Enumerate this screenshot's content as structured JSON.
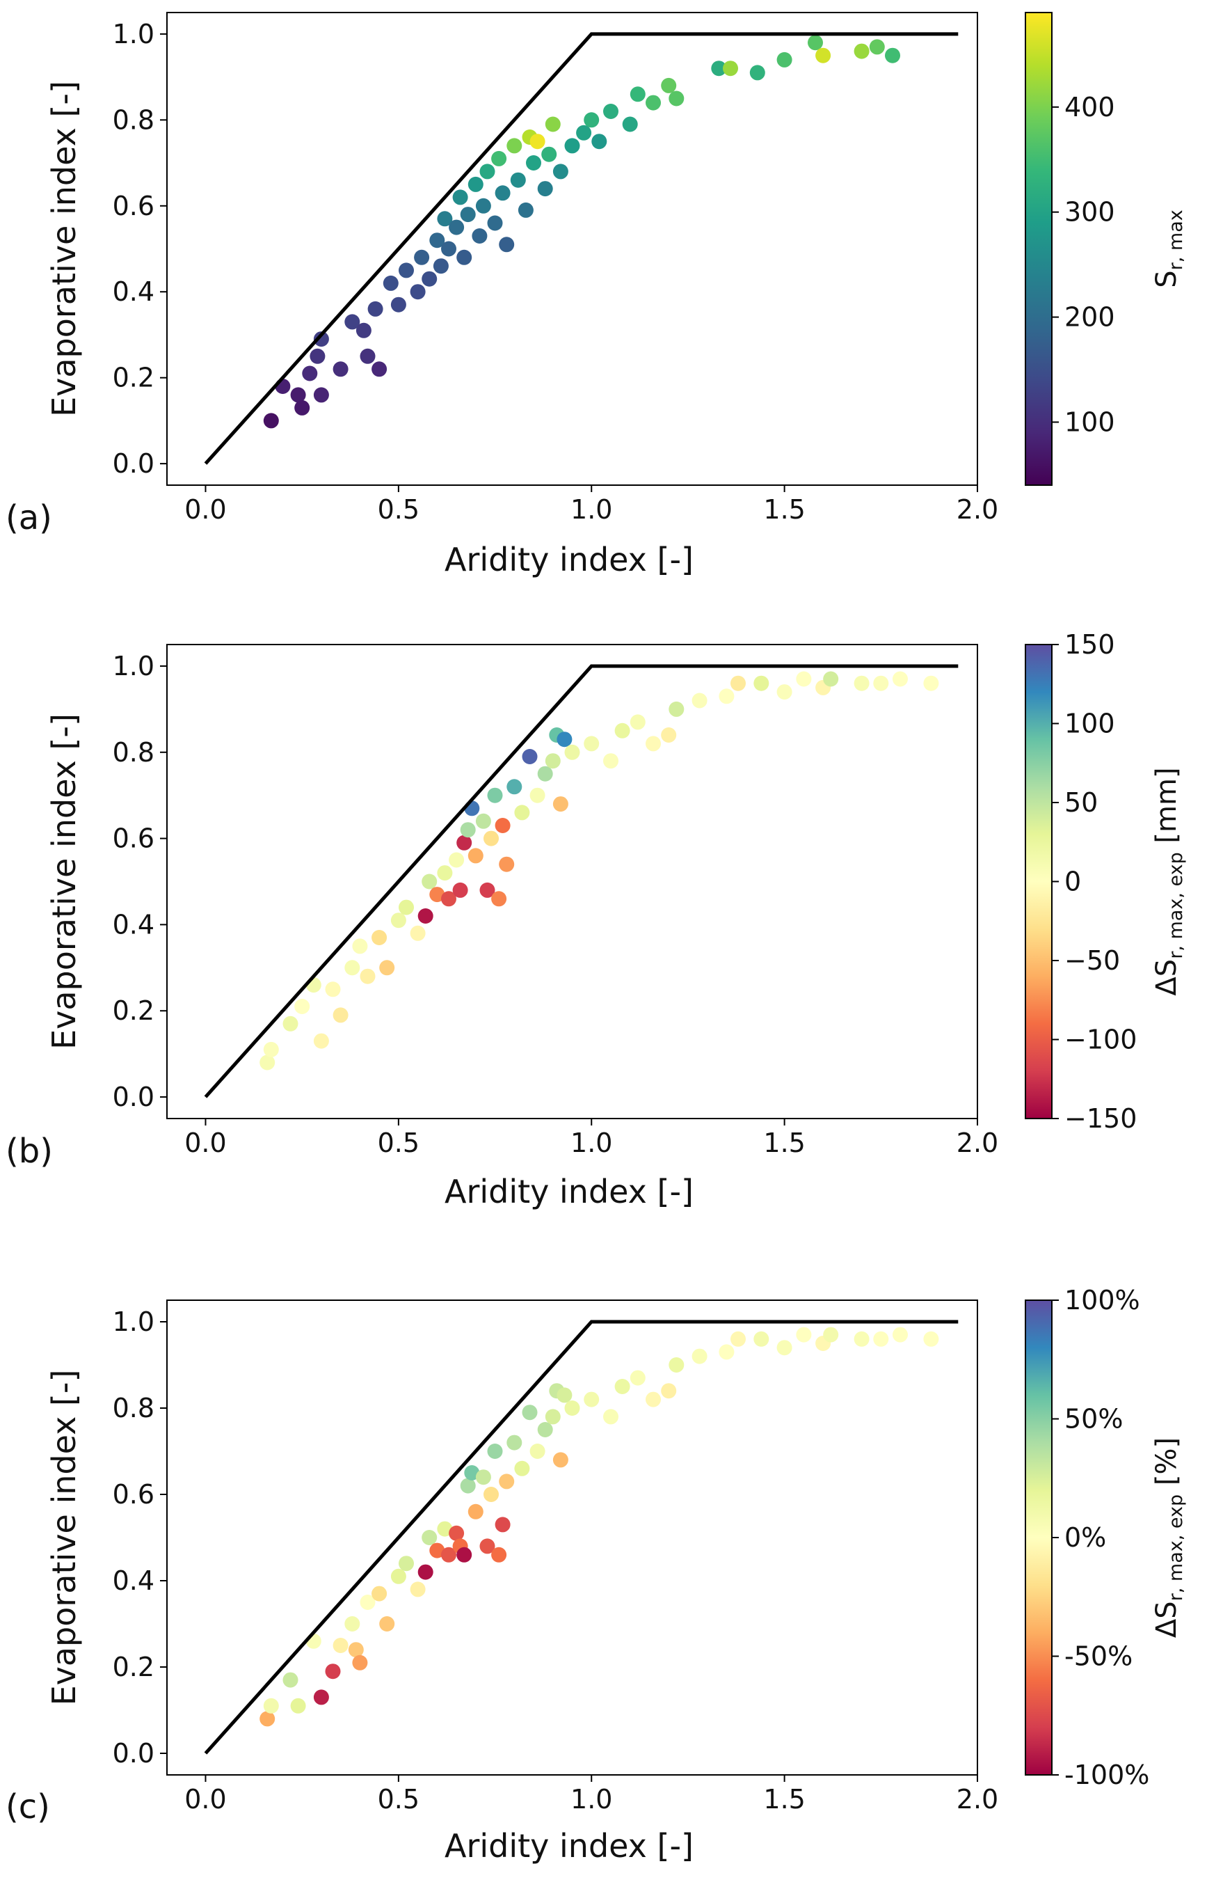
{
  "figure": {
    "colors": {
      "viridis": [
        "#440154",
        "#482878",
        "#3e4989",
        "#31688e",
        "#26828e",
        "#1f9e89",
        "#35b779",
        "#6ece58",
        "#b5de2b",
        "#fde725"
      ],
      "spectral": [
        "#9e0142",
        "#d53e4f",
        "#f46d43",
        "#fdae61",
        "#fee08b",
        "#ffffbf",
        "#e6f598",
        "#abdda4",
        "#66c2a5",
        "#3288bd",
        "#5e4fa2"
      ],
      "budyko_line": "#000000",
      "axes": "#000000"
    }
  },
  "chart_data": [
    {
      "type": "scatter",
      "panel_label": "(a)",
      "xlabel": "Aridity index [-]",
      "ylabel": "Evaporative index [-]",
      "xlim": [
        -0.1,
        2.0
      ],
      "ylim": [
        -0.05,
        1.05
      ],
      "xticks": [
        "0.0",
        "0.5",
        "1.0",
        "1.5",
        "2.0"
      ],
      "yticks": [
        "0.0",
        "0.2",
        "0.4",
        "0.6",
        "0.8",
        "1.0"
      ],
      "grid": false,
      "budyko_limit": [
        [
          0,
          0
        ],
        [
          1,
          1
        ],
        [
          1.95,
          1
        ]
      ],
      "colorbar": {
        "label_main": "S",
        "label_sub": "r, max",
        "label_tail": "",
        "colormap": "viridis",
        "range": [
          40,
          490
        ],
        "ticks": [
          100,
          200,
          300,
          400
        ],
        "tick_labels": [
          "100",
          "200",
          "300",
          "400"
        ]
      },
      "points": [
        {
          "x": 0.17,
          "y": 0.1,
          "c": 60
        },
        {
          "x": 0.2,
          "y": 0.18,
          "c": 80
        },
        {
          "x": 0.24,
          "y": 0.16,
          "c": 75
        },
        {
          "x": 0.25,
          "y": 0.13,
          "c": 70
        },
        {
          "x": 0.27,
          "y": 0.21,
          "c": 95
        },
        {
          "x": 0.29,
          "y": 0.25,
          "c": 110
        },
        {
          "x": 0.3,
          "y": 0.29,
          "c": 125
        },
        {
          "x": 0.3,
          "y": 0.16,
          "c": 85
        },
        {
          "x": 0.35,
          "y": 0.22,
          "c": 100
        },
        {
          "x": 0.38,
          "y": 0.33,
          "c": 130
        },
        {
          "x": 0.41,
          "y": 0.31,
          "c": 120
        },
        {
          "x": 0.42,
          "y": 0.25,
          "c": 105
        },
        {
          "x": 0.44,
          "y": 0.36,
          "c": 135
        },
        {
          "x": 0.45,
          "y": 0.22,
          "c": 90
        },
        {
          "x": 0.48,
          "y": 0.42,
          "c": 150
        },
        {
          "x": 0.5,
          "y": 0.37,
          "c": 140
        },
        {
          "x": 0.52,
          "y": 0.45,
          "c": 160
        },
        {
          "x": 0.55,
          "y": 0.4,
          "c": 145
        },
        {
          "x": 0.56,
          "y": 0.48,
          "c": 175
        },
        {
          "x": 0.58,
          "y": 0.43,
          "c": 150
        },
        {
          "x": 0.6,
          "y": 0.52,
          "c": 190
        },
        {
          "x": 0.61,
          "y": 0.46,
          "c": 165
        },
        {
          "x": 0.62,
          "y": 0.57,
          "c": 230
        },
        {
          "x": 0.63,
          "y": 0.5,
          "c": 180
        },
        {
          "x": 0.65,
          "y": 0.55,
          "c": 200
        },
        {
          "x": 0.66,
          "y": 0.62,
          "c": 260
        },
        {
          "x": 0.67,
          "y": 0.48,
          "c": 170
        },
        {
          "x": 0.68,
          "y": 0.58,
          "c": 215
        },
        {
          "x": 0.7,
          "y": 0.65,
          "c": 280
        },
        {
          "x": 0.71,
          "y": 0.53,
          "c": 185
        },
        {
          "x": 0.72,
          "y": 0.6,
          "c": 225
        },
        {
          "x": 0.73,
          "y": 0.68,
          "c": 310
        },
        {
          "x": 0.75,
          "y": 0.56,
          "c": 195
        },
        {
          "x": 0.76,
          "y": 0.71,
          "c": 350
        },
        {
          "x": 0.77,
          "y": 0.63,
          "c": 240
        },
        {
          "x": 0.78,
          "y": 0.51,
          "c": 175
        },
        {
          "x": 0.8,
          "y": 0.74,
          "c": 400
        },
        {
          "x": 0.81,
          "y": 0.66,
          "c": 260
        },
        {
          "x": 0.83,
          "y": 0.59,
          "c": 210
        },
        {
          "x": 0.84,
          "y": 0.76,
          "c": 440
        },
        {
          "x": 0.85,
          "y": 0.7,
          "c": 300
        },
        {
          "x": 0.86,
          "y": 0.75,
          "c": 480
        },
        {
          "x": 0.88,
          "y": 0.64,
          "c": 235
        },
        {
          "x": 0.89,
          "y": 0.72,
          "c": 330
        },
        {
          "x": 0.9,
          "y": 0.79,
          "c": 410
        },
        {
          "x": 0.92,
          "y": 0.68,
          "c": 260
        },
        {
          "x": 0.95,
          "y": 0.74,
          "c": 290
        },
        {
          "x": 0.98,
          "y": 0.77,
          "c": 300
        },
        {
          "x": 1.0,
          "y": 0.8,
          "c": 330
        },
        {
          "x": 1.02,
          "y": 0.75,
          "c": 280
        },
        {
          "x": 1.05,
          "y": 0.82,
          "c": 320
        },
        {
          "x": 1.1,
          "y": 0.79,
          "c": 305
        },
        {
          "x": 1.12,
          "y": 0.86,
          "c": 340
        },
        {
          "x": 1.16,
          "y": 0.84,
          "c": 360
        },
        {
          "x": 1.2,
          "y": 0.88,
          "c": 380
        },
        {
          "x": 1.22,
          "y": 0.85,
          "c": 370
        },
        {
          "x": 1.33,
          "y": 0.92,
          "c": 320
        },
        {
          "x": 1.36,
          "y": 0.92,
          "c": 420
        },
        {
          "x": 1.43,
          "y": 0.91,
          "c": 330
        },
        {
          "x": 1.5,
          "y": 0.94,
          "c": 360
        },
        {
          "x": 1.58,
          "y": 0.98,
          "c": 370
        },
        {
          "x": 1.6,
          "y": 0.95,
          "c": 460
        },
        {
          "x": 1.7,
          "y": 0.96,
          "c": 420
        },
        {
          "x": 1.74,
          "y": 0.97,
          "c": 380
        },
        {
          "x": 1.78,
          "y": 0.95,
          "c": 350
        }
      ]
    },
    {
      "type": "scatter",
      "panel_label": "(b)",
      "xlabel": "Aridity index [-]",
      "ylabel": "Evaporative index [-]",
      "xlim": [
        -0.1,
        2.0
      ],
      "ylim": [
        -0.05,
        1.05
      ],
      "xticks": [
        "0.0",
        "0.5",
        "1.0",
        "1.5",
        "2.0"
      ],
      "yticks": [
        "0.0",
        "0.2",
        "0.4",
        "0.6",
        "0.8",
        "1.0"
      ],
      "grid": false,
      "budyko_limit": [
        [
          0,
          0
        ],
        [
          1,
          1
        ],
        [
          1.95,
          1
        ]
      ],
      "colorbar": {
        "label_main": "ΔS",
        "label_sub": "r, max, exp",
        "label_tail": " [mm]",
        "colormap": "spectral",
        "range": [
          -150,
          150
        ],
        "ticks": [
          -150,
          -100,
          -50,
          0,
          50,
          100,
          150
        ],
        "tick_labels": [
          "−150",
          "−100",
          "−50",
          "0",
          "50",
          "100",
          "150"
        ]
      },
      "points": [
        {
          "x": 0.16,
          "y": 0.08,
          "c": 10
        },
        {
          "x": 0.17,
          "y": 0.11,
          "c": 5
        },
        {
          "x": 0.22,
          "y": 0.17,
          "c": 20
        },
        {
          "x": 0.25,
          "y": 0.21,
          "c": 0
        },
        {
          "x": 0.28,
          "y": 0.26,
          "c": 15
        },
        {
          "x": 0.3,
          "y": 0.13,
          "c": -10
        },
        {
          "x": 0.33,
          "y": 0.25,
          "c": -5
        },
        {
          "x": 0.35,
          "y": 0.19,
          "c": -20
        },
        {
          "x": 0.38,
          "y": 0.3,
          "c": 10
        },
        {
          "x": 0.4,
          "y": 0.35,
          "c": 5
        },
        {
          "x": 0.42,
          "y": 0.28,
          "c": -15
        },
        {
          "x": 0.45,
          "y": 0.37,
          "c": -30
        },
        {
          "x": 0.47,
          "y": 0.3,
          "c": -40
        },
        {
          "x": 0.5,
          "y": 0.41,
          "c": 20
        },
        {
          "x": 0.52,
          "y": 0.44,
          "c": 30
        },
        {
          "x": 0.55,
          "y": 0.38,
          "c": -10
        },
        {
          "x": 0.57,
          "y": 0.42,
          "c": -140
        },
        {
          "x": 0.58,
          "y": 0.5,
          "c": 40
        },
        {
          "x": 0.6,
          "y": 0.47,
          "c": -80
        },
        {
          "x": 0.62,
          "y": 0.52,
          "c": 25
        },
        {
          "x": 0.63,
          "y": 0.46,
          "c": -110
        },
        {
          "x": 0.65,
          "y": 0.55,
          "c": 10
        },
        {
          "x": 0.66,
          "y": 0.48,
          "c": -120
        },
        {
          "x": 0.67,
          "y": 0.59,
          "c": -130
        },
        {
          "x": 0.68,
          "y": 0.62,
          "c": 60
        },
        {
          "x": 0.69,
          "y": 0.67,
          "c": 130
        },
        {
          "x": 0.7,
          "y": 0.56,
          "c": -60
        },
        {
          "x": 0.72,
          "y": 0.64,
          "c": 50
        },
        {
          "x": 0.73,
          "y": 0.48,
          "c": -120
        },
        {
          "x": 0.74,
          "y": 0.6,
          "c": -30
        },
        {
          "x": 0.75,
          "y": 0.7,
          "c": 80
        },
        {
          "x": 0.76,
          "y": 0.46,
          "c": -80
        },
        {
          "x": 0.77,
          "y": 0.63,
          "c": -90
        },
        {
          "x": 0.78,
          "y": 0.54,
          "c": -70
        },
        {
          "x": 0.8,
          "y": 0.72,
          "c": 100
        },
        {
          "x": 0.82,
          "y": 0.66,
          "c": 30
        },
        {
          "x": 0.84,
          "y": 0.79,
          "c": 140
        },
        {
          "x": 0.86,
          "y": 0.7,
          "c": 10
        },
        {
          "x": 0.88,
          "y": 0.75,
          "c": 60
        },
        {
          "x": 0.9,
          "y": 0.78,
          "c": 40
        },
        {
          "x": 0.91,
          "y": 0.84,
          "c": 90
        },
        {
          "x": 0.92,
          "y": 0.68,
          "c": -50
        },
        {
          "x": 0.93,
          "y": 0.83,
          "c": 120
        },
        {
          "x": 0.95,
          "y": 0.8,
          "c": 20
        },
        {
          "x": 1.0,
          "y": 0.82,
          "c": 15
        },
        {
          "x": 1.05,
          "y": 0.78,
          "c": 5
        },
        {
          "x": 1.08,
          "y": 0.85,
          "c": 25
        },
        {
          "x": 1.12,
          "y": 0.87,
          "c": 10
        },
        {
          "x": 1.16,
          "y": 0.82,
          "c": -5
        },
        {
          "x": 1.2,
          "y": 0.84,
          "c": -15
        },
        {
          "x": 1.22,
          "y": 0.9,
          "c": 40
        },
        {
          "x": 1.28,
          "y": 0.92,
          "c": 5
        },
        {
          "x": 1.35,
          "y": 0.93,
          "c": 0
        },
        {
          "x": 1.38,
          "y": 0.96,
          "c": -20
        },
        {
          "x": 1.44,
          "y": 0.96,
          "c": 30
        },
        {
          "x": 1.5,
          "y": 0.94,
          "c": 5
        },
        {
          "x": 1.55,
          "y": 0.97,
          "c": 0
        },
        {
          "x": 1.6,
          "y": 0.95,
          "c": -10
        },
        {
          "x": 1.62,
          "y": 0.97,
          "c": 40
        },
        {
          "x": 1.7,
          "y": 0.96,
          "c": 10
        },
        {
          "x": 1.75,
          "y": 0.96,
          "c": 5
        },
        {
          "x": 1.8,
          "y": 0.97,
          "c": 0
        },
        {
          "x": 1.88,
          "y": 0.96,
          "c": 0
        }
      ]
    },
    {
      "type": "scatter",
      "panel_label": "(c)",
      "xlabel": "Aridity index [-]",
      "ylabel": "Evaporative index [-]",
      "xlim": [
        -0.1,
        2.0
      ],
      "ylim": [
        -0.05,
        1.05
      ],
      "xticks": [
        "0.0",
        "0.5",
        "1.0",
        "1.5",
        "2.0"
      ],
      "yticks": [
        "0.0",
        "0.2",
        "0.4",
        "0.6",
        "0.8",
        "1.0"
      ],
      "grid": false,
      "budyko_limit": [
        [
          0,
          0
        ],
        [
          1,
          1
        ],
        [
          1.95,
          1
        ]
      ],
      "colorbar": {
        "label_main": "ΔS",
        "label_sub": "r, max, exp",
        "label_tail": " [%]",
        "colormap": "spectral",
        "range": [
          -100,
          100
        ],
        "ticks": [
          -100,
          -50,
          0,
          50,
          100
        ],
        "tick_labels": [
          "-100%",
          "-50%",
          "0%",
          "50%",
          "100%"
        ]
      },
      "points": [
        {
          "x": 0.16,
          "y": 0.08,
          "c": -40
        },
        {
          "x": 0.17,
          "y": 0.11,
          "c": 10
        },
        {
          "x": 0.22,
          "y": 0.17,
          "c": 30
        },
        {
          "x": 0.24,
          "y": 0.11,
          "c": 20
        },
        {
          "x": 0.28,
          "y": 0.26,
          "c": 5
        },
        {
          "x": 0.3,
          "y": 0.13,
          "c": -90
        },
        {
          "x": 0.33,
          "y": 0.19,
          "c": -80
        },
        {
          "x": 0.35,
          "y": 0.25,
          "c": -10
        },
        {
          "x": 0.38,
          "y": 0.3,
          "c": 10
        },
        {
          "x": 0.39,
          "y": 0.24,
          "c": -30
        },
        {
          "x": 0.4,
          "y": 0.21,
          "c": -45
        },
        {
          "x": 0.42,
          "y": 0.35,
          "c": 0
        },
        {
          "x": 0.45,
          "y": 0.37,
          "c": -20
        },
        {
          "x": 0.47,
          "y": 0.3,
          "c": -30
        },
        {
          "x": 0.5,
          "y": 0.41,
          "c": 20
        },
        {
          "x": 0.52,
          "y": 0.44,
          "c": 25
        },
        {
          "x": 0.55,
          "y": 0.38,
          "c": -10
        },
        {
          "x": 0.57,
          "y": 0.42,
          "c": -95
        },
        {
          "x": 0.58,
          "y": 0.5,
          "c": 30
        },
        {
          "x": 0.6,
          "y": 0.47,
          "c": -60
        },
        {
          "x": 0.62,
          "y": 0.52,
          "c": 20
        },
        {
          "x": 0.63,
          "y": 0.46,
          "c": -70
        },
        {
          "x": 0.65,
          "y": 0.51,
          "c": -70
        },
        {
          "x": 0.66,
          "y": 0.48,
          "c": -60
        },
        {
          "x": 0.67,
          "y": 0.46,
          "c": -95
        },
        {
          "x": 0.68,
          "y": 0.62,
          "c": 40
        },
        {
          "x": 0.69,
          "y": 0.65,
          "c": 55
        },
        {
          "x": 0.7,
          "y": 0.56,
          "c": -40
        },
        {
          "x": 0.72,
          "y": 0.64,
          "c": 30
        },
        {
          "x": 0.73,
          "y": 0.48,
          "c": -70
        },
        {
          "x": 0.74,
          "y": 0.6,
          "c": -20
        },
        {
          "x": 0.75,
          "y": 0.7,
          "c": 45
        },
        {
          "x": 0.76,
          "y": 0.46,
          "c": -60
        },
        {
          "x": 0.77,
          "y": 0.53,
          "c": -75
        },
        {
          "x": 0.78,
          "y": 0.63,
          "c": -30
        },
        {
          "x": 0.8,
          "y": 0.72,
          "c": 35
        },
        {
          "x": 0.82,
          "y": 0.66,
          "c": 20
        },
        {
          "x": 0.84,
          "y": 0.79,
          "c": 40
        },
        {
          "x": 0.86,
          "y": 0.7,
          "c": 10
        },
        {
          "x": 0.88,
          "y": 0.75,
          "c": 35
        },
        {
          "x": 0.9,
          "y": 0.78,
          "c": 25
        },
        {
          "x": 0.91,
          "y": 0.84,
          "c": 30
        },
        {
          "x": 0.92,
          "y": 0.68,
          "c": -35
        },
        {
          "x": 0.93,
          "y": 0.83,
          "c": 25
        },
        {
          "x": 0.95,
          "y": 0.8,
          "c": 15
        },
        {
          "x": 1.0,
          "y": 0.82,
          "c": 10
        },
        {
          "x": 1.05,
          "y": 0.78,
          "c": 5
        },
        {
          "x": 1.08,
          "y": 0.85,
          "c": 15
        },
        {
          "x": 1.12,
          "y": 0.87,
          "c": 5
        },
        {
          "x": 1.16,
          "y": 0.82,
          "c": -5
        },
        {
          "x": 1.2,
          "y": 0.84,
          "c": -10
        },
        {
          "x": 1.22,
          "y": 0.9,
          "c": 15
        },
        {
          "x": 1.28,
          "y": 0.92,
          "c": 5
        },
        {
          "x": 1.35,
          "y": 0.93,
          "c": 0
        },
        {
          "x": 1.38,
          "y": 0.96,
          "c": -5
        },
        {
          "x": 1.44,
          "y": 0.96,
          "c": 10
        },
        {
          "x": 1.5,
          "y": 0.94,
          "c": 5
        },
        {
          "x": 1.55,
          "y": 0.97,
          "c": 0
        },
        {
          "x": 1.6,
          "y": 0.95,
          "c": -5
        },
        {
          "x": 1.62,
          "y": 0.97,
          "c": 10
        },
        {
          "x": 1.7,
          "y": 0.96,
          "c": 5
        },
        {
          "x": 1.75,
          "y": 0.96,
          "c": 0
        },
        {
          "x": 1.8,
          "y": 0.97,
          "c": 0
        },
        {
          "x": 1.88,
          "y": 0.96,
          "c": 0
        }
      ]
    }
  ]
}
